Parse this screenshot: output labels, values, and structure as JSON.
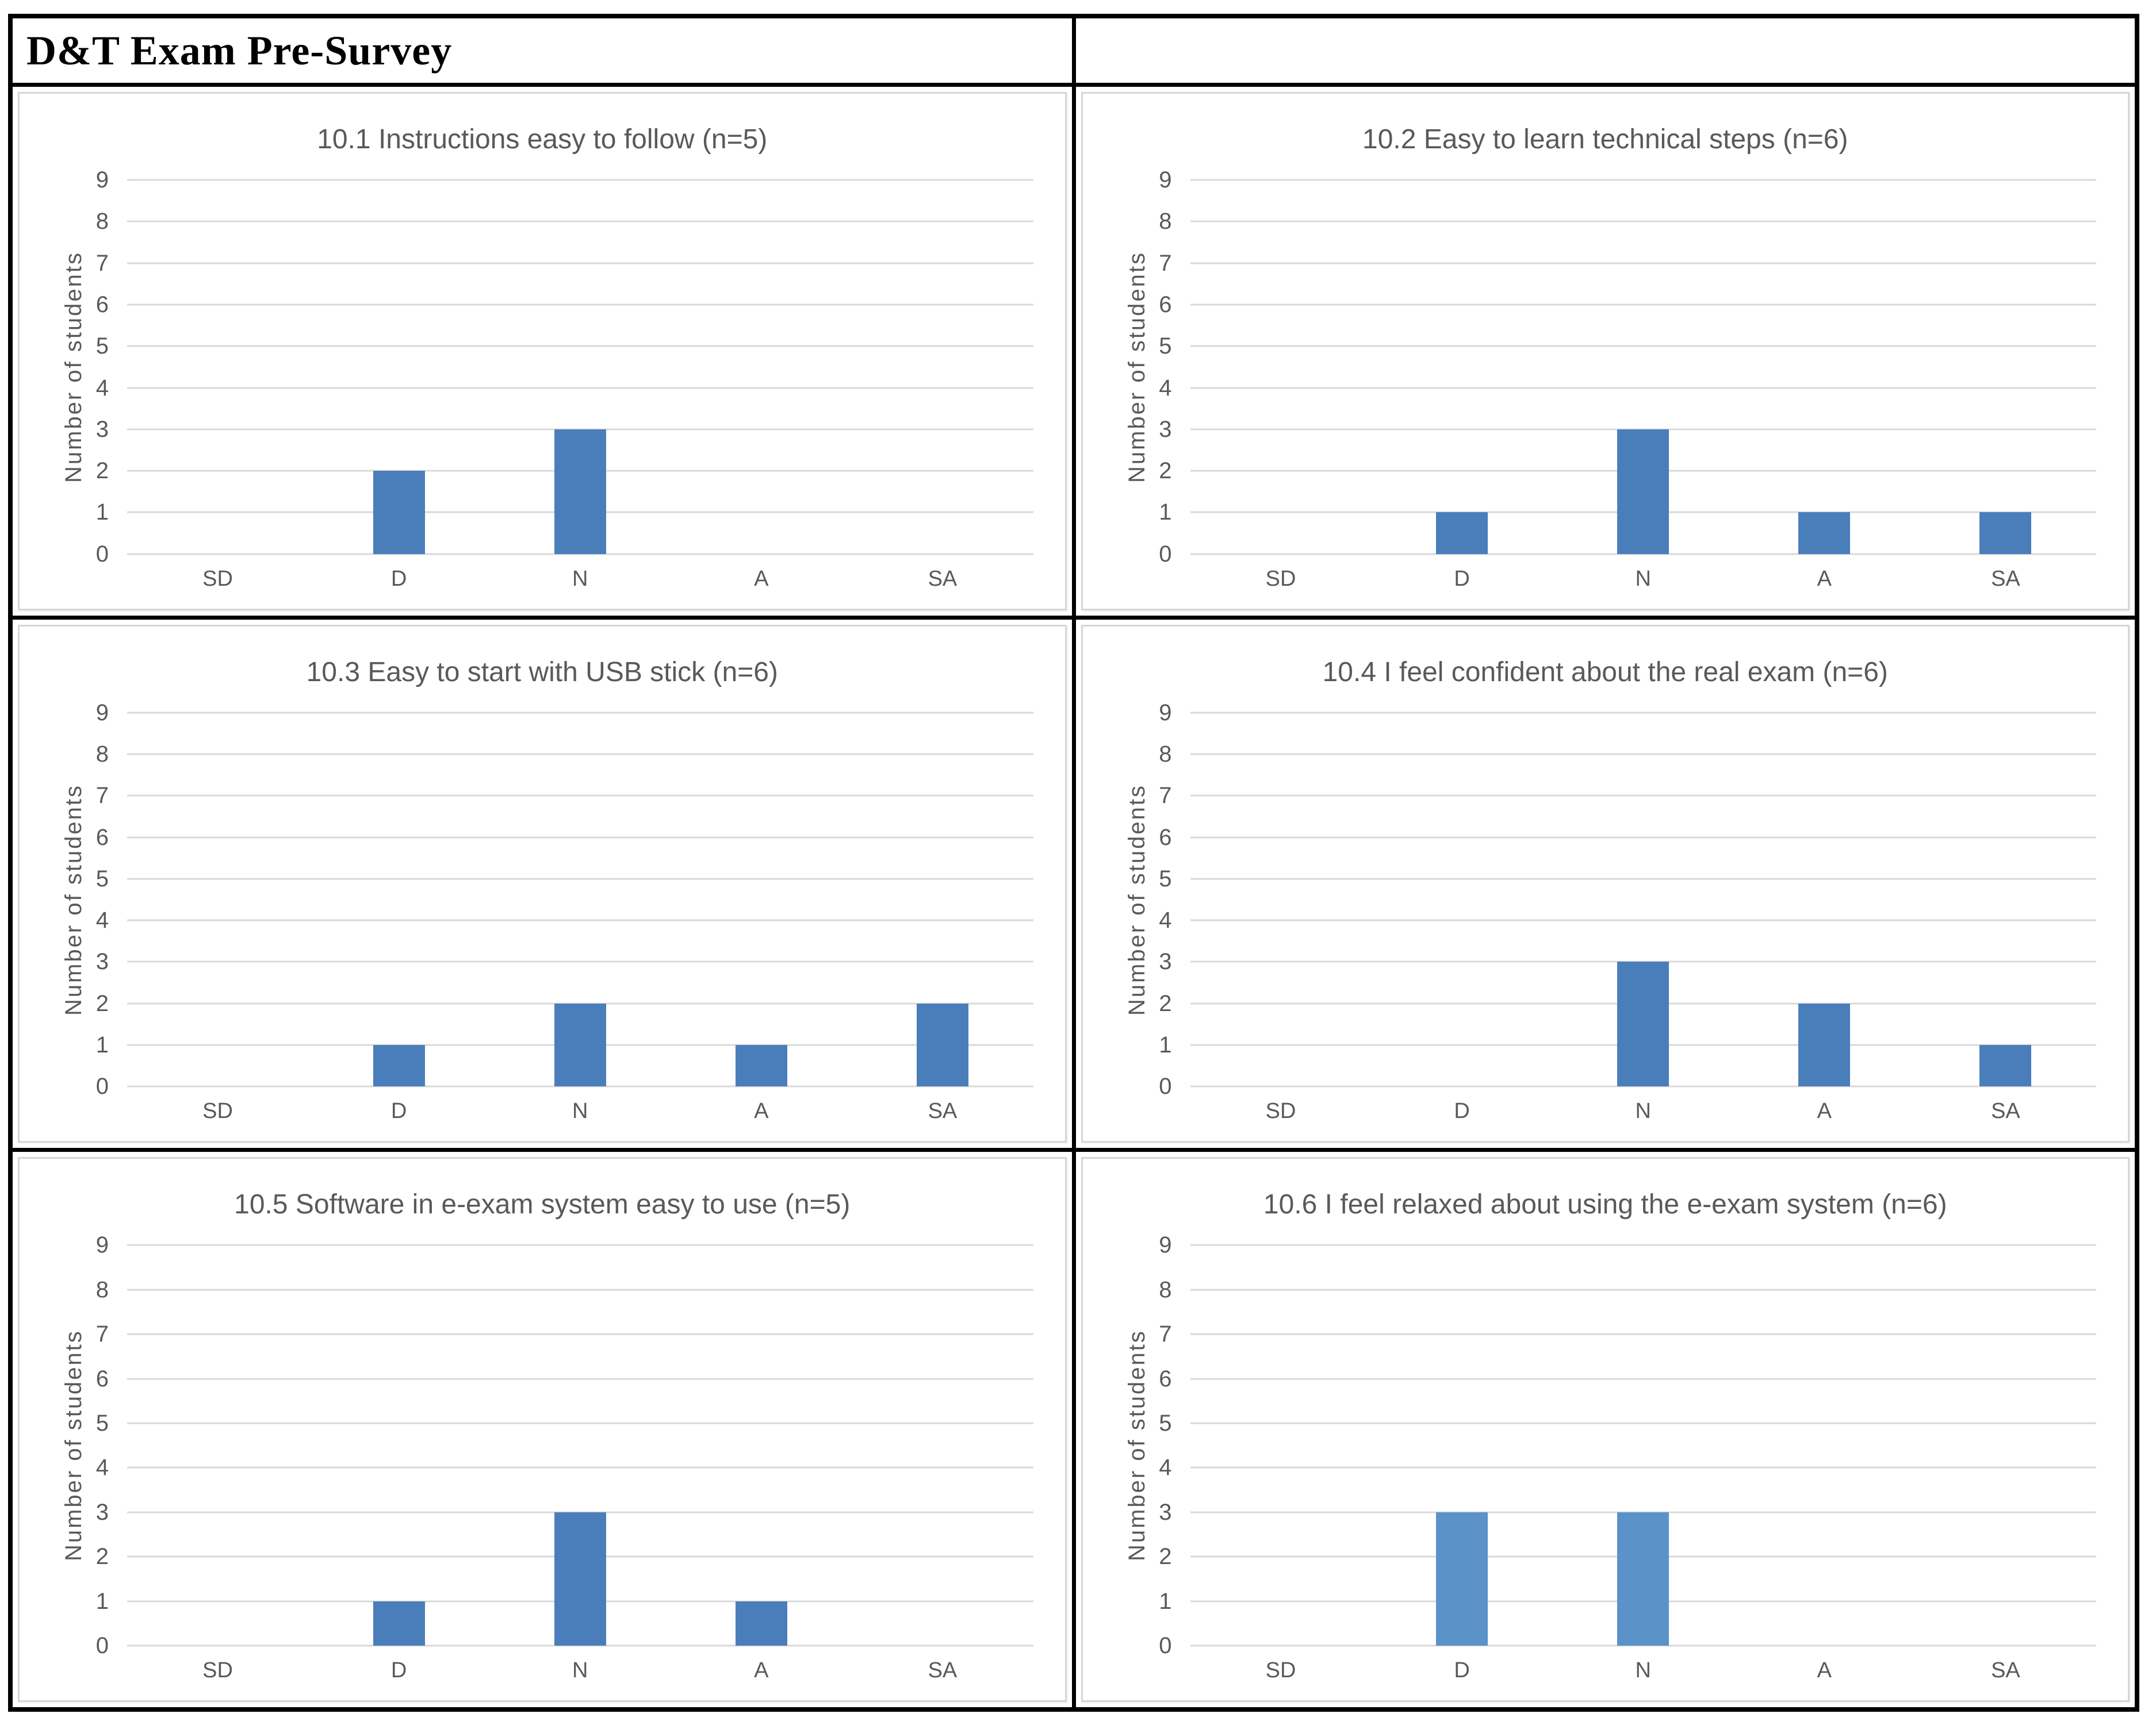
{
  "header": {
    "title": "D&T Exam Pre-Survey"
  },
  "colors": {
    "grid": "#d9d9d9",
    "axis_text": "#595959",
    "panel_border": "#d6d6d6",
    "bar_blue": "#4a7ebb",
    "bar_blue_light": "#5b92c8"
  },
  "chart_data": [
    {
      "type": "bar",
      "title": "10.1 Instructions easy to follow (n=5)",
      "n": 5,
      "categories": [
        "SD",
        "D",
        "N",
        "A",
        "SA"
      ],
      "values": [
        0,
        2,
        3,
        0,
        0
      ],
      "xlabel": "",
      "ylabel": "Number of students",
      "ylim": [
        0,
        9
      ],
      "ytick_step": 1,
      "grid": true,
      "legend": "none",
      "bar_color": "#4a7ebb"
    },
    {
      "type": "bar",
      "title": "10.2 Easy to learn technical steps (n=6)",
      "n": 6,
      "categories": [
        "SD",
        "D",
        "N",
        "A",
        "SA"
      ],
      "values": [
        0,
        1,
        3,
        1,
        1
      ],
      "xlabel": "",
      "ylabel": "Number of students",
      "ylim": [
        0,
        9
      ],
      "ytick_step": 1,
      "grid": true,
      "legend": "none",
      "bar_color": "#4a7ebb"
    },
    {
      "type": "bar",
      "title": "10.3 Easy to start with USB stick (n=6)",
      "n": 6,
      "categories": [
        "SD",
        "D",
        "N",
        "A",
        "SA"
      ],
      "values": [
        0,
        1,
        2,
        1,
        2
      ],
      "xlabel": "",
      "ylabel": "Number of students",
      "ylim": [
        0,
        9
      ],
      "ytick_step": 1,
      "grid": true,
      "legend": "none",
      "bar_color": "#4a7ebb"
    },
    {
      "type": "bar",
      "title": "10.4 I feel confident about the real exam (n=6)",
      "n": 6,
      "categories": [
        "SD",
        "D",
        "N",
        "A",
        "SA"
      ],
      "values": [
        0,
        0,
        3,
        2,
        1
      ],
      "xlabel": "",
      "ylabel": "Number of students",
      "ylim": [
        0,
        9
      ],
      "ytick_step": 1,
      "grid": true,
      "legend": "none",
      "bar_color": "#4a7ebb"
    },
    {
      "type": "bar",
      "title": "10.5 Software in e-exam system easy to use (n=5)",
      "n": 5,
      "categories": [
        "SD",
        "D",
        "N",
        "A",
        "SA"
      ],
      "values": [
        0,
        1,
        3,
        1,
        0
      ],
      "xlabel": "",
      "ylabel": "Number of students",
      "ylim": [
        0,
        9
      ],
      "ytick_step": 1,
      "grid": true,
      "legend": "none",
      "bar_color": "#4a7ebb"
    },
    {
      "type": "bar",
      "title": "10.6 I feel relaxed about using the e-exam system (n=6)",
      "n": 6,
      "categories": [
        "SD",
        "D",
        "N",
        "A",
        "SA"
      ],
      "values": [
        0,
        3,
        3,
        0,
        0
      ],
      "xlabel": "",
      "ylabel": "Number of students",
      "ylim": [
        0,
        9
      ],
      "ytick_step": 1,
      "grid": true,
      "legend": "none",
      "bar_color": "#5b92c8"
    }
  ]
}
